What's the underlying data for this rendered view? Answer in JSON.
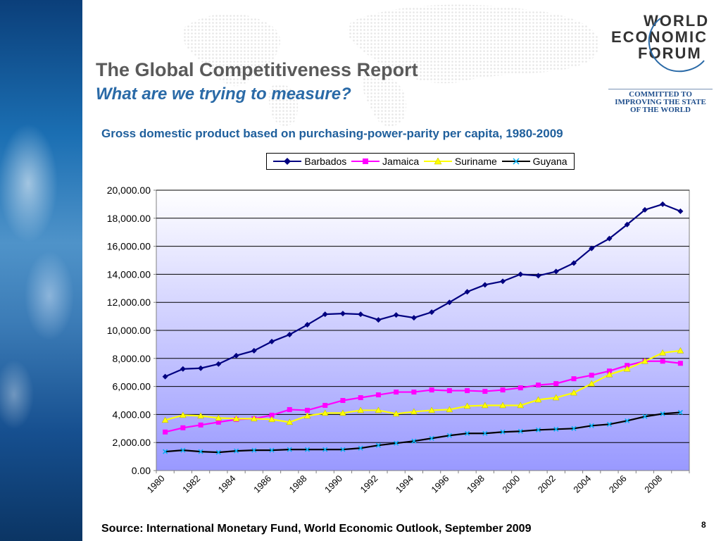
{
  "slide": {
    "title": "The Global Competitiveness Report",
    "subtitle": "What are we trying to measure?",
    "source": "Source: International Monetary Fund, World Economic Outlook, September 2009",
    "page_number": "8"
  },
  "logo": {
    "lines": [
      "WORLD",
      "ECONOMIC",
      "FORUM"
    ],
    "tagline": [
      "COMMITTED TO",
      "IMPROVING THE STATE",
      "OF THE WORLD"
    ]
  },
  "colors": {
    "title": "#5a5a5a",
    "subtitle": "#2a6aa7",
    "chart_title": "#1f5f9c",
    "barbados": "#000080",
    "jamaica": "#ff00ff",
    "suriname": "#ffff00",
    "guyana": "#000000",
    "plot_top": "#ffffff",
    "plot_bottom": "#9999ff"
  },
  "chart_data": {
    "type": "line",
    "title": "Gross domestic product based on purchasing-power-parity per capita, 1980-2009",
    "xlabel": "",
    "ylabel": "",
    "ylim": [
      0,
      20000
    ],
    "ytick_step": 2000,
    "ytick_labels": [
      "0.00",
      "2,000.00",
      "4,000.00",
      "6,000.00",
      "8,000.00",
      "10,000.00",
      "12,000.00",
      "14,000.00",
      "16,000.00",
      "18,000.00",
      "20,000.00"
    ],
    "x": [
      1980,
      1981,
      1982,
      1983,
      1984,
      1985,
      1986,
      1987,
      1988,
      1989,
      1990,
      1991,
      1992,
      1993,
      1994,
      1995,
      1996,
      1997,
      1998,
      1999,
      2000,
      2001,
      2002,
      2003,
      2004,
      2005,
      2006,
      2007,
      2008,
      2009
    ],
    "xtick_labels": [
      "1980",
      "1982",
      "1984",
      "1986",
      "1988",
      "1990",
      "1992",
      "1994",
      "1996",
      "1998",
      "2000",
      "2002",
      "2004",
      "2006",
      "2008"
    ],
    "grid": true,
    "legend_position": "top",
    "series": [
      {
        "name": "Barbados",
        "marker": "diamond",
        "values": [
          6700,
          7250,
          7300,
          7600,
          8200,
          8550,
          9200,
          9700,
          10400,
          11150,
          11200,
          11150,
          10750,
          11100,
          10900,
          11300,
          12000,
          12750,
          13250,
          13500,
          14000,
          13900,
          14200,
          14800,
          15850,
          16550,
          17550,
          18600,
          19000,
          18500
        ]
      },
      {
        "name": "Jamaica",
        "marker": "square",
        "values": [
          2750,
          3050,
          3250,
          3450,
          3650,
          3700,
          3950,
          4350,
          4300,
          4650,
          5000,
          5200,
          5400,
          5600,
          5600,
          5750,
          5700,
          5700,
          5650,
          5750,
          5900,
          6100,
          6200,
          6550,
          6800,
          7100,
          7500,
          7800,
          7800,
          7650
        ]
      },
      {
        "name": "Suriname",
        "marker": "triangle",
        "values": [
          3600,
          3950,
          3900,
          3750,
          3700,
          3700,
          3650,
          3450,
          3900,
          4100,
          4100,
          4300,
          4300,
          4050,
          4200,
          4300,
          4350,
          4600,
          4650,
          4650,
          4650,
          5050,
          5200,
          5550,
          6200,
          6850,
          7250,
          7800,
          8400,
          8550
        ]
      },
      {
        "name": "Guyana",
        "marker": "cross",
        "values": [
          1350,
          1450,
          1350,
          1300,
          1400,
          1450,
          1450,
          1500,
          1500,
          1500,
          1500,
          1600,
          1800,
          1950,
          2100,
          2300,
          2500,
          2650,
          2650,
          2750,
          2800,
          2900,
          2950,
          3000,
          3200,
          3300,
          3550,
          3850,
          4050,
          4150
        ]
      }
    ]
  }
}
